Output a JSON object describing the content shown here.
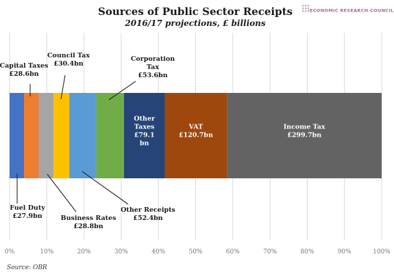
{
  "header": {
    "title": "Sources of Public Sector Receipts",
    "subtitle": "2016/17 projections, £ billions",
    "brand": "ECONOMIC RESEARCH COUNCIL",
    "source": "Source: OBR"
  },
  "chart_data": {
    "type": "bar",
    "stacked": true,
    "orientation": "horizontal",
    "unit": "£ billions",
    "x_axis": {
      "min": 0,
      "max": 100,
      "unit": "%",
      "ticks": [
        "0%",
        "10%",
        "20%",
        "30%",
        "40%",
        "50%",
        "60%",
        "70%",
        "80%",
        "90%",
        "100%"
      ],
      "grid": true
    },
    "series": [
      {
        "name": "Fuel Duty",
        "value": 27.9,
        "color": "#4472c4",
        "label_lines": [
          "Fuel Duty",
          "£27.9bn"
        ]
      },
      {
        "name": "Capital Taxes",
        "value": 28.6,
        "color": "#ed7d31",
        "label_lines": [
          "Capital Taxes",
          "£28.6bn"
        ]
      },
      {
        "name": "Business Rates",
        "value": 28.8,
        "color": "#a5a5a5",
        "label_lines": [
          "Business Rates",
          "£28.8bn"
        ]
      },
      {
        "name": "Council Tax",
        "value": 30.4,
        "color": "#ffc000",
        "label_lines": [
          "Council Tax",
          "£30.4bn"
        ]
      },
      {
        "name": "Other Receipts",
        "value": 52.4,
        "color": "#5b9bd5",
        "label_lines": [
          "Other Receipts",
          "£52.4bn"
        ]
      },
      {
        "name": "Corporation Tax",
        "value": 53.6,
        "color": "#70ad47",
        "label_lines": [
          "Corporation",
          "Tax",
          "£53.6bn"
        ]
      },
      {
        "name": "Other Taxes",
        "value": 79.1,
        "color": "#264478",
        "label_lines": [
          "Other",
          "Taxes",
          "£79.1",
          "bn"
        ]
      },
      {
        "name": "VAT",
        "value": 120.7,
        "color": "#9e480e",
        "label_lines": [
          "VAT",
          "£120.7bn"
        ]
      },
      {
        "name": "Income Tax",
        "value": 299.7,
        "color": "#636363",
        "label_lines": [
          "Income Tax",
          "£299.7bn"
        ]
      }
    ]
  }
}
